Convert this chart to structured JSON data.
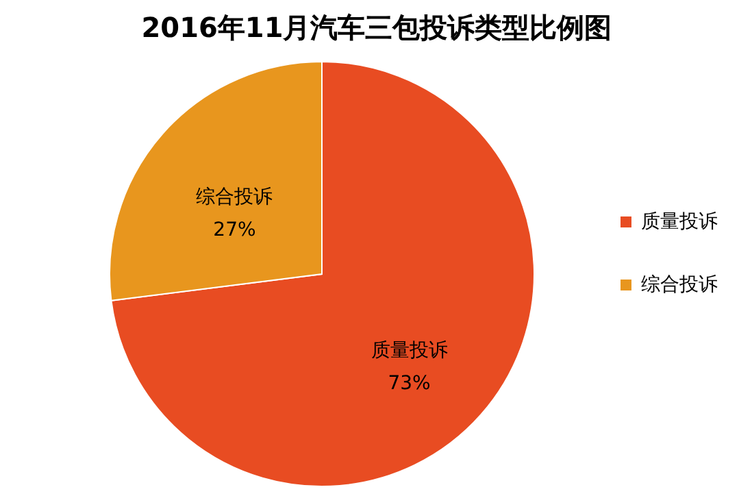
{
  "chart_data": {
    "type": "pie",
    "title": "2016年11月汽车三包投诉类型比例图",
    "categories": [
      "质量投诉",
      "综合投诉"
    ],
    "values": [
      73,
      27
    ],
    "colors": [
      "#e84c22",
      "#e8961e"
    ],
    "value_labels": [
      "73%",
      "27%"
    ],
    "legend": "right"
  }
}
